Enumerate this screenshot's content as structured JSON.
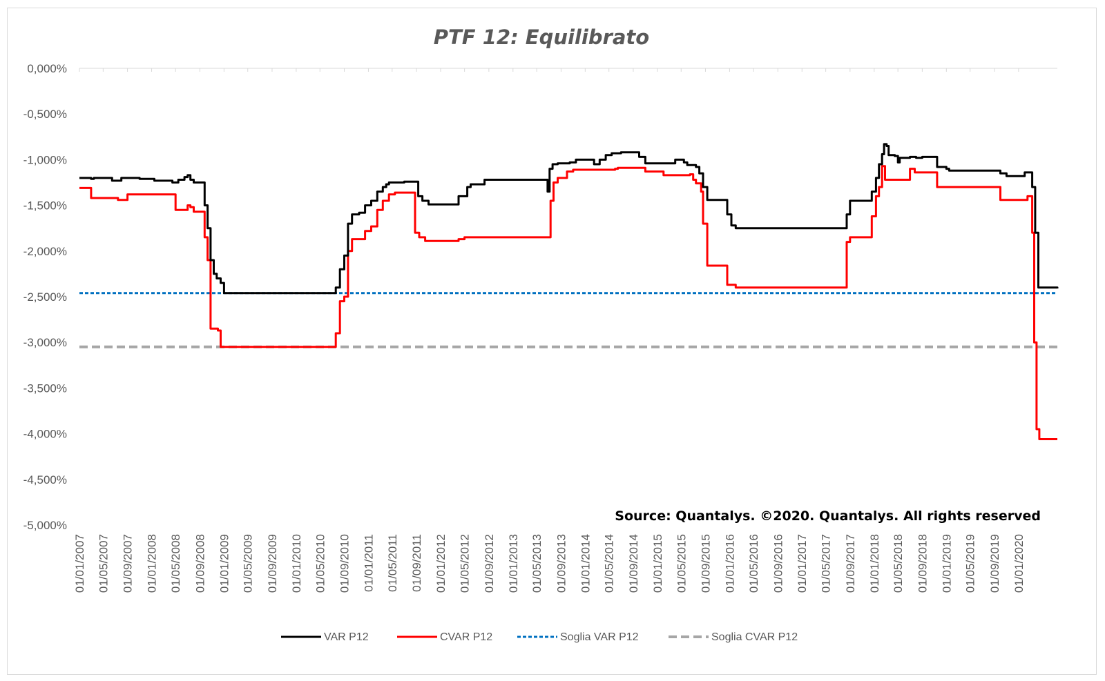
{
  "chart_data": {
    "type": "line",
    "title": "PTF 12: Equilibrato",
    "source_note": "Source: Quantalys. ©2020. Quantalys. All rights reserved",
    "xlabel": "",
    "ylabel": "",
    "ylim": [
      -5.0,
      0.0
    ],
    "y_ticks": [
      {
        "value": 0.0,
        "label": "0,000%"
      },
      {
        "value": -0.5,
        "label": "-0,500%"
      },
      {
        "value": -1.0,
        "label": "-1,000%"
      },
      {
        "value": -1.5,
        "label": "-1,500%"
      },
      {
        "value": -2.0,
        "label": "-2,000%"
      },
      {
        "value": -2.5,
        "label": "-2,500%"
      },
      {
        "value": -3.0,
        "label": "-3,000%"
      },
      {
        "value": -3.5,
        "label": "-3,500%"
      },
      {
        "value": -4.0,
        "label": "-4,000%"
      },
      {
        "value": -4.5,
        "label": "-4,500%"
      },
      {
        "value": -5.0,
        "label": "-5,000%"
      }
    ],
    "x_start": "2007-01-01",
    "x_end": "2020-07-15",
    "x_ticks": [
      "01/01/2007",
      "01/05/2007",
      "01/09/2007",
      "01/01/2008",
      "01/05/2008",
      "01/09/2008",
      "01/01/2009",
      "01/05/2009",
      "01/09/2009",
      "01/01/2010",
      "01/05/2010",
      "01/09/2010",
      "01/01/2011",
      "01/05/2011",
      "01/09/2011",
      "01/01/2012",
      "01/05/2012",
      "01/09/2012",
      "01/01/2013",
      "01/05/2013",
      "01/09/2013",
      "01/01/2014",
      "01/05/2014",
      "01/09/2014",
      "01/01/2015",
      "01/05/2015",
      "01/09/2015",
      "01/01/2016",
      "01/05/2016",
      "01/09/2016",
      "01/01/2017",
      "01/05/2017",
      "01/09/2017",
      "01/01/2018",
      "01/05/2018",
      "01/09/2018",
      "01/01/2019",
      "01/05/2019",
      "01/09/2019",
      "01/01/2020"
    ],
    "grid": false,
    "legend_position": "bottom",
    "series": [
      {
        "name": "VAR  P12",
        "color": "#000000",
        "style": "solid",
        "points": [
          [
            "2007-01-01",
            -1.2
          ],
          [
            "2007-03-01",
            -1.21
          ],
          [
            "2007-03-15",
            -1.2
          ],
          [
            "2007-06-01",
            -1.2
          ],
          [
            "2007-06-15",
            -1.23
          ],
          [
            "2007-07-15",
            -1.23
          ],
          [
            "2007-08-01",
            -1.2
          ],
          [
            "2007-10-15",
            -1.2
          ],
          [
            "2007-11-01",
            -1.21
          ],
          [
            "2008-01-01",
            -1.21
          ],
          [
            "2008-01-15",
            -1.23
          ],
          [
            "2008-04-01",
            -1.23
          ],
          [
            "2008-04-15",
            -1.25
          ],
          [
            "2008-05-01",
            -1.25
          ],
          [
            "2008-05-15",
            -1.22
          ],
          [
            "2008-06-15",
            -1.19
          ],
          [
            "2008-07-01",
            -1.17
          ],
          [
            "2008-07-15",
            -1.22
          ],
          [
            "2008-08-01",
            -1.25
          ],
          [
            "2008-09-10",
            -1.25
          ],
          [
            "2008-09-25",
            -1.5
          ],
          [
            "2008-10-10",
            -1.75
          ],
          [
            "2008-10-25",
            -2.1
          ],
          [
            "2008-11-10",
            -2.25
          ],
          [
            "2008-11-25",
            -2.3
          ],
          [
            "2008-12-15",
            -2.35
          ],
          [
            "2009-01-01",
            -2.46
          ],
          [
            "2010-07-01",
            -2.46
          ],
          [
            "2010-07-20",
            -2.4
          ],
          [
            "2010-08-10",
            -2.2
          ],
          [
            "2010-09-01",
            -2.05
          ],
          [
            "2010-09-20",
            -1.7
          ],
          [
            "2010-10-10",
            -1.6
          ],
          [
            "2010-11-15",
            -1.58
          ],
          [
            "2010-12-15",
            -1.5
          ],
          [
            "2011-01-15",
            -1.45
          ],
          [
            "2011-02-15",
            -1.35
          ],
          [
            "2011-03-15",
            -1.3
          ],
          [
            "2011-04-01",
            -1.27
          ],
          [
            "2011-04-15",
            -1.25
          ],
          [
            "2011-06-15",
            -1.25
          ],
          [
            "2011-07-01",
            -1.24
          ],
          [
            "2011-08-20",
            -1.24
          ],
          [
            "2011-09-10",
            -1.4
          ],
          [
            "2011-10-01",
            -1.45
          ],
          [
            "2011-11-01",
            -1.49
          ],
          [
            "2012-03-15",
            -1.49
          ],
          [
            "2012-04-01",
            -1.4
          ],
          [
            "2012-04-20",
            -1.4
          ],
          [
            "2012-05-15",
            -1.3
          ],
          [
            "2012-06-01",
            -1.27
          ],
          [
            "2012-07-20",
            -1.27
          ],
          [
            "2012-08-10",
            -1.22
          ],
          [
            "2013-06-15",
            -1.22
          ],
          [
            "2013-06-25",
            -1.35
          ],
          [
            "2013-07-05",
            -1.1
          ],
          [
            "2013-07-20",
            -1.05
          ],
          [
            "2013-08-15",
            -1.04
          ],
          [
            "2013-10-15",
            -1.03
          ],
          [
            "2013-11-15",
            -1.0
          ],
          [
            "2014-02-01",
            -1.0
          ],
          [
            "2014-02-15",
            -1.05
          ],
          [
            "2014-03-15",
            -1.0
          ],
          [
            "2014-04-15",
            -0.95
          ],
          [
            "2014-05-15",
            -0.93
          ],
          [
            "2014-07-01",
            -0.92
          ],
          [
            "2014-09-15",
            -0.92
          ],
          [
            "2014-10-01",
            -0.97
          ],
          [
            "2014-11-01",
            -1.04
          ],
          [
            "2015-03-15",
            -1.04
          ],
          [
            "2015-04-01",
            -1.0
          ],
          [
            "2015-05-15",
            -1.03
          ],
          [
            "2015-06-01",
            -1.06
          ],
          [
            "2015-07-15",
            -1.08
          ],
          [
            "2015-08-01",
            -1.15
          ],
          [
            "2015-08-20",
            -1.3
          ],
          [
            "2015-09-10",
            -1.44
          ],
          [
            "2015-12-01",
            -1.44
          ],
          [
            "2015-12-20",
            -1.6
          ],
          [
            "2016-01-10",
            -1.72
          ],
          [
            "2016-02-01",
            -1.75
          ],
          [
            "2017-08-01",
            -1.75
          ],
          [
            "2017-08-15",
            -1.6
          ],
          [
            "2017-09-01",
            -1.45
          ],
          [
            "2017-12-01",
            -1.45
          ],
          [
            "2017-12-20",
            -1.35
          ],
          [
            "2018-01-10",
            -1.2
          ],
          [
            "2018-01-25",
            -1.05
          ],
          [
            "2018-02-10",
            -0.94
          ],
          [
            "2018-02-20",
            -0.83
          ],
          [
            "2018-03-05",
            -0.85
          ],
          [
            "2018-03-15",
            -0.95
          ],
          [
            "2018-04-15",
            -0.96
          ],
          [
            "2018-05-01",
            -1.03
          ],
          [
            "2018-05-10",
            -0.98
          ],
          [
            "2018-06-15",
            -0.98
          ],
          [
            "2018-07-01",
            -0.97
          ],
          [
            "2018-08-01",
            -0.98
          ],
          [
            "2018-09-01",
            -0.97
          ],
          [
            "2018-11-01",
            -0.97
          ],
          [
            "2018-11-15",
            -1.08
          ],
          [
            "2019-01-01",
            -1.1
          ],
          [
            "2019-01-15",
            -1.12
          ],
          [
            "2019-09-15",
            -1.12
          ],
          [
            "2019-10-01",
            -1.15
          ],
          [
            "2019-11-01",
            -1.18
          ],
          [
            "2020-01-15",
            -1.18
          ],
          [
            "2020-02-01",
            -1.14
          ],
          [
            "2020-03-01",
            -1.14
          ],
          [
            "2020-03-10",
            -1.3
          ],
          [
            "2020-03-25",
            -1.8
          ],
          [
            "2020-04-10",
            -2.4
          ],
          [
            "2020-07-15",
            -2.41
          ]
        ]
      },
      {
        "name": "CVAR P12",
        "color": "#ff0000",
        "style": "solid",
        "points": [
          [
            "2007-01-01",
            -1.31
          ],
          [
            "2007-02-15",
            -1.31
          ],
          [
            "2007-03-01",
            -1.42
          ],
          [
            "2007-07-01",
            -1.42
          ],
          [
            "2007-07-15",
            -1.44
          ],
          [
            "2007-08-15",
            -1.44
          ],
          [
            "2007-09-01",
            -1.38
          ],
          [
            "2008-04-15",
            -1.38
          ],
          [
            "2008-05-01",
            -1.55
          ],
          [
            "2008-06-15",
            -1.55
          ],
          [
            "2008-07-01",
            -1.5
          ],
          [
            "2008-07-15",
            -1.52
          ],
          [
            "2008-08-01",
            -1.57
          ],
          [
            "2008-09-10",
            -1.57
          ],
          [
            "2008-09-25",
            -1.85
          ],
          [
            "2008-10-10",
            -2.1
          ],
          [
            "2008-10-25",
            -2.85
          ],
          [
            "2008-12-01",
            -2.87
          ],
          [
            "2008-12-15",
            -3.05
          ],
          [
            "2010-07-01",
            -3.05
          ],
          [
            "2010-07-20",
            -2.9
          ],
          [
            "2010-08-10",
            -2.55
          ],
          [
            "2010-09-01",
            -2.5
          ],
          [
            "2010-09-20",
            -2.0
          ],
          [
            "2010-10-10",
            -1.87
          ],
          [
            "2010-11-15",
            -1.87
          ],
          [
            "2010-12-15",
            -1.78
          ],
          [
            "2011-01-15",
            -1.73
          ],
          [
            "2011-02-15",
            -1.55
          ],
          [
            "2011-03-15",
            -1.45
          ],
          [
            "2011-04-15",
            -1.38
          ],
          [
            "2011-05-15",
            -1.36
          ],
          [
            "2011-08-10",
            -1.36
          ],
          [
            "2011-08-25",
            -1.8
          ],
          [
            "2011-09-15",
            -1.85
          ],
          [
            "2011-10-15",
            -1.89
          ],
          [
            "2012-03-15",
            -1.89
          ],
          [
            "2012-04-01",
            -1.87
          ],
          [
            "2012-05-01",
            -1.85
          ],
          [
            "2013-07-01",
            -1.85
          ],
          [
            "2013-07-10",
            -1.45
          ],
          [
            "2013-07-25",
            -1.25
          ],
          [
            "2013-08-15",
            -1.2
          ],
          [
            "2013-10-01",
            -1.13
          ],
          [
            "2013-11-01",
            -1.11
          ],
          [
            "2014-06-01",
            -1.1
          ],
          [
            "2014-06-15",
            -1.09
          ],
          [
            "2014-10-15",
            -1.09
          ],
          [
            "2014-11-01",
            -1.13
          ],
          [
            "2015-02-01",
            -1.17
          ],
          [
            "2015-06-15",
            -1.16
          ],
          [
            "2015-07-01",
            -1.22
          ],
          [
            "2015-07-15",
            -1.26
          ],
          [
            "2015-08-10",
            -1.35
          ],
          [
            "2015-08-20",
            -1.7
          ],
          [
            "2015-09-10",
            -2.16
          ],
          [
            "2015-12-01",
            -2.16
          ],
          [
            "2015-12-20",
            -2.37
          ],
          [
            "2016-02-01",
            -2.4
          ],
          [
            "2017-08-01",
            -2.4
          ],
          [
            "2017-08-15",
            -1.9
          ],
          [
            "2017-09-01",
            -1.85
          ],
          [
            "2017-12-01",
            -1.85
          ],
          [
            "2017-12-20",
            -1.62
          ],
          [
            "2018-01-10",
            -1.4
          ],
          [
            "2018-01-25",
            -1.3
          ],
          [
            "2018-02-10",
            -1.07
          ],
          [
            "2018-02-25",
            -1.22
          ],
          [
            "2018-06-15",
            -1.22
          ],
          [
            "2018-07-01",
            -1.1
          ],
          [
            "2018-07-25",
            -1.14
          ],
          [
            "2018-11-01",
            -1.14
          ],
          [
            "2018-11-15",
            -1.3
          ],
          [
            "2019-09-15",
            -1.3
          ],
          [
            "2019-10-01",
            -1.44
          ],
          [
            "2020-02-01",
            -1.44
          ],
          [
            "2020-02-15",
            -1.4
          ],
          [
            "2020-03-01",
            -1.4
          ],
          [
            "2020-03-10",
            -1.8
          ],
          [
            "2020-03-20",
            -3.0
          ],
          [
            "2020-04-01",
            -3.95
          ],
          [
            "2020-04-15",
            -4.06
          ],
          [
            "2020-07-15",
            -4.06
          ]
        ]
      },
      {
        "name": "Soglia VAR  P12",
        "color": "#0070c0",
        "style": "dotted",
        "points": [
          [
            "2007-01-01",
            -2.46
          ],
          [
            "2020-07-15",
            -2.46
          ]
        ]
      },
      {
        "name": "Soglia CVAR  P12",
        "color": "#a6a6a6",
        "style": "dashed",
        "points": [
          [
            "2007-01-01",
            -3.05
          ],
          [
            "2020-07-15",
            -3.05
          ]
        ]
      }
    ]
  }
}
